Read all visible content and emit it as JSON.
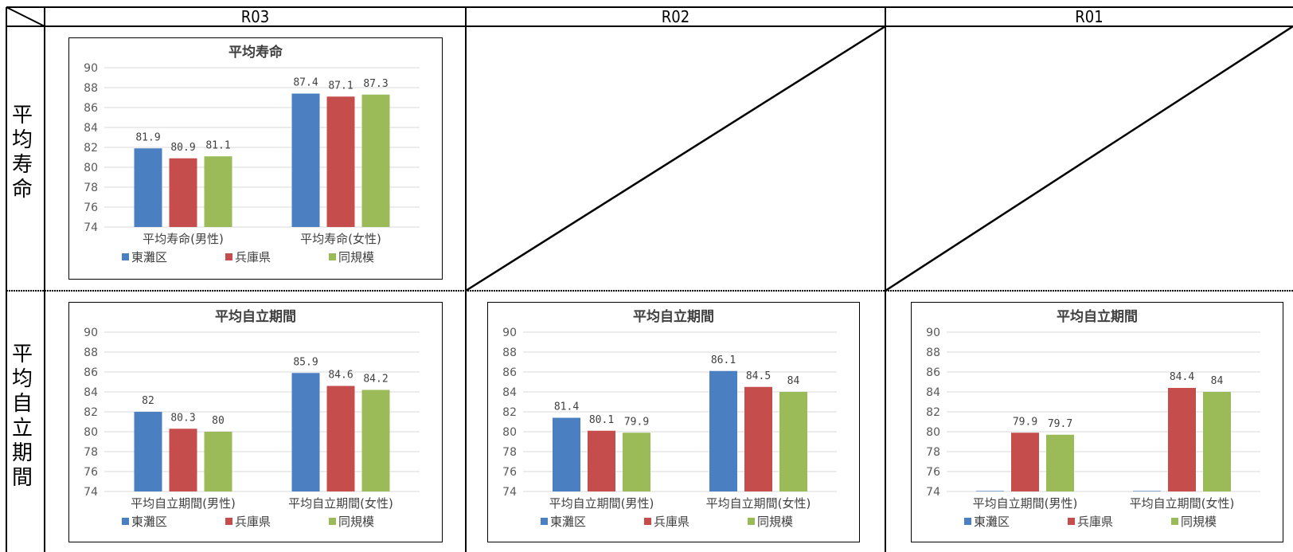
{
  "headers": [
    "R03",
    "R02",
    "R01"
  ],
  "row_labels": [
    [
      "平",
      "均",
      "寿",
      "命"
    ],
    [
      "平",
      "均",
      "自",
      "立",
      "期",
      "間"
    ]
  ],
  "legend": [
    "東灘区",
    "兵庫県",
    "同規模"
  ],
  "colors": {
    "series": [
      "#4a7fc1",
      "#c54d4c",
      "#9bbb58"
    ],
    "grid": "#d9d9d9",
    "axis_text": "#595959",
    "border": "#000000"
  },
  "chart_data": [
    {
      "type": "bar",
      "id": "r03-life",
      "title": "平均寿命",
      "categories": [
        "平均寿命(男性)",
        "平均寿命(女性)"
      ],
      "series": [
        {
          "name": "東灘区",
          "values": [
            81.9,
            87.4
          ],
          "labels": [
            "81.9",
            "87.4"
          ]
        },
        {
          "name": "兵庫県",
          "values": [
            80.9,
            87.1
          ],
          "labels": [
            "80.9",
            "87.1"
          ]
        },
        {
          "name": "同規模",
          "values": [
            81.1,
            87.3
          ],
          "labels": [
            "81.1",
            "87.3"
          ]
        }
      ],
      "yticks": [
        74,
        76,
        78,
        80,
        82,
        84,
        86,
        88,
        90
      ],
      "ylim": [
        74,
        90
      ],
      "grid": true,
      "legend_position": "bottom"
    },
    {
      "type": "bar",
      "id": "r03-indep",
      "title": "平均自立期間",
      "categories": [
        "平均自立期間(男性)",
        "平均自立期間(女性)"
      ],
      "series": [
        {
          "name": "東灘区",
          "values": [
            82,
            85.9
          ],
          "labels": [
            "82",
            "85.9"
          ]
        },
        {
          "name": "兵庫県",
          "values": [
            80.3,
            84.6
          ],
          "labels": [
            "80.3",
            "84.6"
          ]
        },
        {
          "name": "同規模",
          "values": [
            80,
            84.2
          ],
          "labels": [
            "80",
            "84.2"
          ]
        }
      ],
      "yticks": [
        74,
        76,
        78,
        80,
        82,
        84,
        86,
        88,
        90
      ],
      "ylim": [
        74,
        90
      ],
      "grid": true,
      "legend_position": "bottom"
    },
    {
      "type": "bar",
      "id": "r02-indep",
      "title": "平均自立期間",
      "categories": [
        "平均自立期間(男性)",
        "平均自立期間(女性)"
      ],
      "series": [
        {
          "name": "東灘区",
          "values": [
            81.4,
            86.1
          ],
          "labels": [
            "81.4",
            "86.1"
          ]
        },
        {
          "name": "兵庫県",
          "values": [
            80.1,
            84.5
          ],
          "labels": [
            "80.1",
            "84.5"
          ]
        },
        {
          "name": "同規模",
          "values": [
            79.9,
            84
          ],
          "labels": [
            "79.9",
            "84"
          ]
        }
      ],
      "yticks": [
        74,
        76,
        78,
        80,
        82,
        84,
        86,
        88,
        90
      ],
      "ylim": [
        74,
        90
      ],
      "grid": true,
      "legend_position": "bottom"
    },
    {
      "type": "bar",
      "id": "r01-indep",
      "title": "平均自立期間",
      "categories": [
        "平均自立期間(男性)",
        "平均自立期間(女性)"
      ],
      "series": [
        {
          "name": "東灘区",
          "values": [
            null,
            null
          ],
          "labels": [
            "",
            ""
          ]
        },
        {
          "name": "兵庫県",
          "values": [
            79.9,
            84.4
          ],
          "labels": [
            "79.9",
            "84.4"
          ]
        },
        {
          "name": "同規模",
          "values": [
            79.7,
            84
          ],
          "labels": [
            "79.7",
            "84"
          ]
        }
      ],
      "yticks": [
        74,
        76,
        78,
        80,
        82,
        84,
        86,
        88,
        90
      ],
      "ylim": [
        74,
        90
      ],
      "grid": true,
      "legend_position": "bottom"
    }
  ]
}
